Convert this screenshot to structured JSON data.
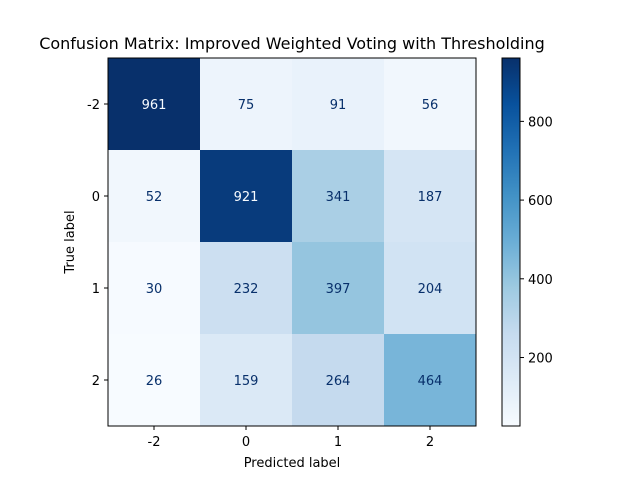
{
  "chart_data": {
    "type": "heatmap",
    "title": "Confusion Matrix: Improved Weighted Voting with Thresholding",
    "xlabel": "Predicted label",
    "ylabel": "True label",
    "x_categories": [
      "-2",
      "0",
      "1",
      "2"
    ],
    "y_categories": [
      "-2",
      "0",
      "1",
      "2"
    ],
    "values": [
      [
        961,
        75,
        91,
        56
      ],
      [
        52,
        921,
        341,
        187
      ],
      [
        30,
        232,
        397,
        204
      ],
      [
        26,
        159,
        264,
        464
      ]
    ],
    "colormap": "Blues",
    "colorbar": {
      "range": [
        26,
        961
      ],
      "ticks": [
        200,
        400,
        600,
        800
      ]
    },
    "grid": false
  }
}
